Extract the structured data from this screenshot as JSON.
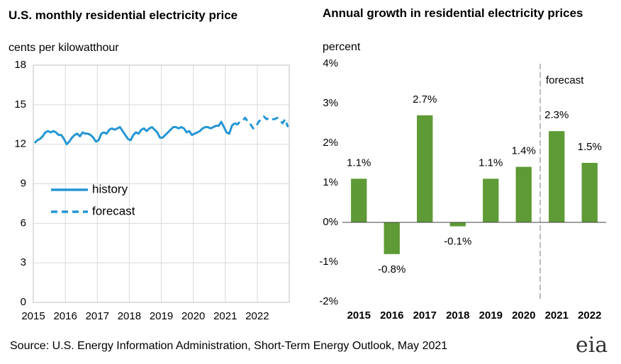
{
  "chart_data": [
    {
      "type": "line",
      "title": "U.S. monthly residential electricity price",
      "subtitle": "cents per kilowatthour",
      "categories": [
        "2015",
        null,
        null,
        null,
        null,
        null,
        null,
        null,
        null,
        null,
        null,
        null,
        "2016",
        null,
        null,
        null,
        null,
        null,
        null,
        null,
        null,
        null,
        null,
        null,
        "2017",
        null,
        null,
        null,
        null,
        null,
        null,
        null,
        null,
        null,
        null,
        null,
        "2018",
        null,
        null,
        null,
        null,
        null,
        null,
        null,
        null,
        null,
        null,
        null,
        "2019",
        null,
        null,
        null,
        null,
        null,
        null,
        null,
        null,
        null,
        null,
        null,
        "2020",
        null,
        null,
        null,
        null,
        null,
        null,
        null,
        null,
        null,
        null,
        null,
        "2021",
        null,
        null,
        null,
        null,
        null,
        null,
        null,
        null,
        null,
        null,
        null,
        "2022",
        null,
        null,
        null,
        null,
        null,
        null,
        null,
        null,
        null,
        null,
        null
      ],
      "series": [
        {
          "name": "history",
          "color": "#2596d4",
          "style": "solid",
          "values": [
            12.1,
            12.3,
            12.4,
            12.6,
            12.9,
            13.0,
            12.9,
            13.0,
            12.9,
            12.7,
            12.7,
            12.4,
            12.0,
            12.2,
            12.5,
            12.7,
            12.8,
            12.6,
            12.9,
            12.8,
            12.8,
            12.7,
            12.5,
            12.2,
            12.3,
            12.8,
            12.9,
            12.8,
            13.1,
            13.2,
            13.1,
            13.2,
            13.3,
            13.0,
            12.7,
            12.4,
            12.3,
            12.7,
            12.9,
            12.8,
            13.1,
            13.2,
            13.0,
            13.2,
            13.3,
            13.1,
            12.9,
            12.5,
            12.5,
            12.7,
            12.9,
            13.1,
            13.3,
            13.3,
            13.2,
            13.3,
            13.2,
            12.9,
            13.0,
            12.7,
            12.8,
            12.9,
            13.0,
            13.2,
            13.3,
            13.3,
            13.2,
            13.3,
            13.4,
            13.4,
            13.7,
            13.3,
            12.9,
            12.8,
            13.4,
            13.6,
            null,
            null,
            null,
            null,
            null,
            null,
            null,
            null,
            null,
            null,
            null,
            null,
            null,
            null,
            null,
            null,
            null,
            null,
            null,
            null
          ]
        },
        {
          "name": "forecast",
          "color": "#2596d4",
          "style": "dashed",
          "values": [
            null,
            null,
            null,
            null,
            null,
            null,
            null,
            null,
            null,
            null,
            null,
            null,
            null,
            null,
            null,
            null,
            null,
            null,
            null,
            null,
            null,
            null,
            null,
            null,
            null,
            null,
            null,
            null,
            null,
            null,
            null,
            null,
            null,
            null,
            null,
            null,
            null,
            null,
            null,
            null,
            null,
            null,
            null,
            null,
            null,
            null,
            null,
            null,
            null,
            null,
            null,
            null,
            null,
            null,
            null,
            null,
            null,
            null,
            null,
            null,
            null,
            null,
            null,
            null,
            null,
            null,
            null,
            null,
            null,
            null,
            null,
            null,
            null,
            null,
            null,
            13.6,
            13.5,
            13.7,
            13.8,
            14.0,
            13.7,
            13.5,
            13.2,
            13.3,
            13.7,
            13.9,
            14.1,
            13.9,
            14.0,
            13.9,
            13.9,
            14.0,
            13.8,
            13.6,
            13.9,
            13.3
          ]
        }
      ],
      "ylim": [
        0,
        18
      ],
      "yticks": [
        0,
        3,
        6,
        9,
        12,
        15,
        18
      ],
      "grid": true
    },
    {
      "type": "bar",
      "title": "Annual growth in residential electricity prices",
      "subtitle": "percent",
      "categories": [
        "2015",
        "2016",
        "2017",
        "2018",
        "2019",
        "2020",
        "2021",
        "2022"
      ],
      "values": [
        1.1,
        -0.8,
        2.7,
        -0.1,
        1.1,
        1.4,
        2.3,
        1.5
      ],
      "value_labels": [
        "1.1%",
        "-0.8%",
        "2.7%",
        "-0.1%",
        "1.1%",
        "1.4%",
        "2.3%",
        "1.5%"
      ],
      "color": "#5e9a35",
      "ylim": [
        -2,
        4
      ],
      "yticks": [
        {
          "value": -2,
          "label": "-2%"
        },
        {
          "value": -1,
          "label": "-1%"
        },
        {
          "value": 0,
          "label": "0%"
        },
        {
          "value": 1,
          "label": "1%"
        },
        {
          "value": 2,
          "label": "2%"
        },
        {
          "value": 3,
          "label": "3%"
        },
        {
          "value": 4,
          "label": "4%"
        }
      ],
      "annotation": "forecast"
    }
  ],
  "source": "Source: U.S. Energy Information Administration, Short-Term Energy Outlook, May 2021",
  "logo": "eia"
}
